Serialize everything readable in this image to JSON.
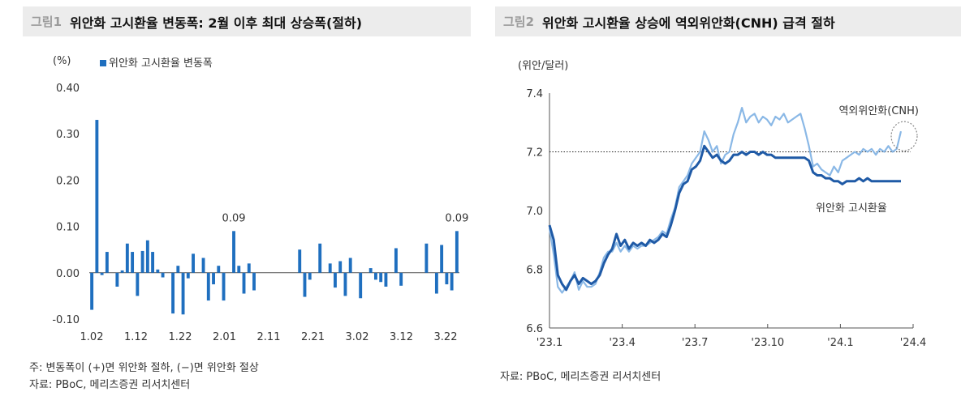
{
  "charts": [
    {
      "fig_num": "그림1",
      "title": "위안화 고시환율 변동폭: 2월 이후 최대 상승폭(절하)",
      "note": "주: 변동폭이 (+)면 위안화 절하, (−)면 위안화 절상",
      "source": "자료: PBoC, 메리츠증권 리서치센터"
    },
    {
      "fig_num": "그림2",
      "title": "위안화 고시환율 상승에 역외위안화(CNH) 급격 절하",
      "source": "자료: PBoC, 메리츠증권 리서치센터"
    }
  ],
  "chart_data": [
    {
      "type": "bar",
      "ylabel": "(%)",
      "ylim": [
        -0.1,
        0.4
      ],
      "yticks": [
        "0.40",
        "0.30",
        "0.20",
        "0.10",
        "0.00",
        "-0.10"
      ],
      "xticks": [
        "1.02",
        "1.12",
        "1.22",
        "2.01",
        "2.11",
        "2.21",
        "3.02",
        "3.12",
        "3.22"
      ],
      "legend": "위안화 고시환율 변동폭",
      "color": "#1f6fbf",
      "annotations": [
        "0.09",
        "0.09"
      ],
      "series": [
        {
          "name": "위안화 고시환율 변동폭",
          "values": [
            -0.08,
            0.33,
            -0.005,
            0.045,
            0.0,
            -0.03,
            0.005,
            0.063,
            0.045,
            -0.05,
            0.047,
            0.07,
            0.045,
            0.007,
            -0.01,
            0.0,
            -0.088,
            0.015,
            -0.09,
            -0.012,
            0.041,
            0.0,
            0.032,
            -0.06,
            -0.025,
            0.015,
            -0.06,
            0.0,
            0.09,
            0.015,
            -0.045,
            0.02,
            -0.038,
            0.0,
            0.0,
            0.0,
            0.0,
            0.0,
            0.0,
            0.0,
            0.0,
            0.05,
            -0.052,
            -0.015,
            0.0,
            0.063,
            0.0,
            0.02,
            -0.032,
            0.025,
            -0.05,
            0.032,
            0.0,
            -0.055,
            0.0,
            0.01,
            -0.015,
            -0.02,
            -0.03,
            0.0,
            0.053,
            -0.028,
            0.0,
            0.0,
            0.0,
            0.0,
            0.063,
            0.0,
            -0.045,
            0.06,
            -0.025,
            -0.038,
            0.09
          ]
        }
      ]
    },
    {
      "type": "line",
      "ylabel": "(위안/달러)",
      "ylim": [
        6.6,
        7.4
      ],
      "yticks": [
        "7.4",
        "7.2",
        "7.0",
        "6.8",
        "6.6"
      ],
      "xticks": [
        "'23.1",
        "'23.4",
        "'23.7",
        "'23.10",
        "'24.1",
        "'24.4"
      ],
      "reference_line": 7.2,
      "series": [
        {
          "name": "위안화 고시환율",
          "color": "#1f5aa6",
          "points": [
            [
              0,
              6.95
            ],
            [
              1,
              6.9
            ],
            [
              2,
              6.78
            ],
            [
              3,
              6.75
            ],
            [
              4,
              6.73
            ],
            [
              5,
              6.76
            ],
            [
              6,
              6.78
            ],
            [
              7,
              6.75
            ],
            [
              8,
              6.77
            ],
            [
              9,
              6.76
            ],
            [
              10,
              6.75
            ],
            [
              11,
              6.76
            ],
            [
              12,
              6.78
            ],
            [
              13,
              6.82
            ],
            [
              14,
              6.85
            ],
            [
              15,
              6.87
            ],
            [
              16,
              6.92
            ],
            [
              17,
              6.88
            ],
            [
              18,
              6.9
            ],
            [
              19,
              6.87
            ],
            [
              20,
              6.89
            ],
            [
              21,
              6.88
            ],
            [
              22,
              6.89
            ],
            [
              23,
              6.88
            ],
            [
              24,
              6.9
            ],
            [
              25,
              6.89
            ],
            [
              26,
              6.9
            ],
            [
              27,
              6.92
            ],
            [
              28,
              6.91
            ],
            [
              29,
              6.95
            ],
            [
              30,
              7.0
            ],
            [
              31,
              7.06
            ],
            [
              32,
              7.09
            ],
            [
              33,
              7.1
            ],
            [
              34,
              7.14
            ],
            [
              35,
              7.15
            ],
            [
              36,
              7.17
            ],
            [
              37,
              7.22
            ],
            [
              38,
              7.2
            ],
            [
              39,
              7.18
            ],
            [
              40,
              7.19
            ],
            [
              41,
              7.17
            ],
            [
              42,
              7.16
            ],
            [
              43,
              7.17
            ],
            [
              44,
              7.19
            ],
            [
              45,
              7.19
            ],
            [
              46,
              7.2
            ],
            [
              47,
              7.19
            ],
            [
              48,
              7.2
            ],
            [
              49,
              7.2
            ],
            [
              50,
              7.19
            ],
            [
              51,
              7.2
            ],
            [
              52,
              7.19
            ],
            [
              53,
              7.19
            ],
            [
              54,
              7.18
            ],
            [
              55,
              7.18
            ],
            [
              56,
              7.18
            ],
            [
              57,
              7.18
            ],
            [
              58,
              7.18
            ],
            [
              59,
              7.18
            ],
            [
              60,
              7.18
            ],
            [
              61,
              7.18
            ],
            [
              62,
              7.17
            ],
            [
              63,
              7.13
            ],
            [
              64,
              7.12
            ],
            [
              65,
              7.12
            ],
            [
              66,
              7.11
            ],
            [
              67,
              7.11
            ],
            [
              68,
              7.1
            ],
            [
              69,
              7.1
            ],
            [
              70,
              7.09
            ],
            [
              71,
              7.1
            ],
            [
              72,
              7.1
            ],
            [
              73,
              7.1
            ],
            [
              74,
              7.11
            ],
            [
              75,
              7.1
            ],
            [
              76,
              7.11
            ],
            [
              77,
              7.1
            ],
            [
              78,
              7.1
            ],
            [
              79,
              7.1
            ],
            [
              80,
              7.1
            ],
            [
              81,
              7.1
            ],
            [
              82,
              7.1
            ],
            [
              83,
              7.1
            ],
            [
              84,
              7.1
            ]
          ]
        },
        {
          "name": "역외위안화(CNH)",
          "color": "#8ab8e6",
          "points": [
            [
              0,
              6.94
            ],
            [
              1,
              6.85
            ],
            [
              2,
              6.74
            ],
            [
              3,
              6.72
            ],
            [
              4,
              6.74
            ],
            [
              5,
              6.76
            ],
            [
              6,
              6.79
            ],
            [
              7,
              6.73
            ],
            [
              8,
              6.76
            ],
            [
              9,
              6.74
            ],
            [
              10,
              6.74
            ],
            [
              11,
              6.75
            ],
            [
              12,
              6.79
            ],
            [
              13,
              6.84
            ],
            [
              14,
              6.86
            ],
            [
              15,
              6.86
            ],
            [
              16,
              6.89
            ],
            [
              17,
              6.86
            ],
            [
              18,
              6.88
            ],
            [
              19,
              6.86
            ],
            [
              20,
              6.88
            ],
            [
              21,
              6.87
            ],
            [
              22,
              6.88
            ],
            [
              23,
              6.88
            ],
            [
              24,
              6.89
            ],
            [
              25,
              6.9
            ],
            [
              26,
              6.91
            ],
            [
              27,
              6.93
            ],
            [
              28,
              6.92
            ],
            [
              29,
              6.97
            ],
            [
              30,
              7.01
            ],
            [
              31,
              7.08
            ],
            [
              32,
              7.1
            ],
            [
              33,
              7.12
            ],
            [
              34,
              7.16
            ],
            [
              35,
              7.18
            ],
            [
              36,
              7.2
            ],
            [
              37,
              7.27
            ],
            [
              38,
              7.24
            ],
            [
              39,
              7.2
            ],
            [
              40,
              7.22
            ],
            [
              41,
              7.16
            ],
            [
              42,
              7.19
            ],
            [
              43,
              7.2
            ],
            [
              44,
              7.26
            ],
            [
              45,
              7.3
            ],
            [
              46,
              7.35
            ],
            [
              47,
              7.3
            ],
            [
              48,
              7.32
            ],
            [
              49,
              7.33
            ],
            [
              50,
              7.3
            ],
            [
              51,
              7.32
            ],
            [
              52,
              7.31
            ],
            [
              53,
              7.29
            ],
            [
              54,
              7.32
            ],
            [
              55,
              7.31
            ],
            [
              56,
              7.33
            ],
            [
              57,
              7.3
            ],
            [
              58,
              7.31
            ],
            [
              59,
              7.32
            ],
            [
              60,
              7.33
            ],
            [
              61,
              7.28
            ],
            [
              62,
              7.22
            ],
            [
              63,
              7.15
            ],
            [
              64,
              7.16
            ],
            [
              65,
              7.14
            ],
            [
              66,
              7.13
            ],
            [
              67,
              7.12
            ],
            [
              68,
              7.15
            ],
            [
              69,
              7.13
            ],
            [
              70,
              7.17
            ],
            [
              71,
              7.18
            ],
            [
              72,
              7.19
            ],
            [
              73,
              7.2
            ],
            [
              74,
              7.19
            ],
            [
              75,
              7.21
            ],
            [
              76,
              7.2
            ],
            [
              77,
              7.21
            ],
            [
              78,
              7.19
            ],
            [
              79,
              7.21
            ],
            [
              80,
              7.2
            ],
            [
              81,
              7.22
            ],
            [
              82,
              7.2
            ],
            [
              83,
              7.21
            ],
            [
              84,
              7.27
            ]
          ]
        }
      ]
    }
  ]
}
